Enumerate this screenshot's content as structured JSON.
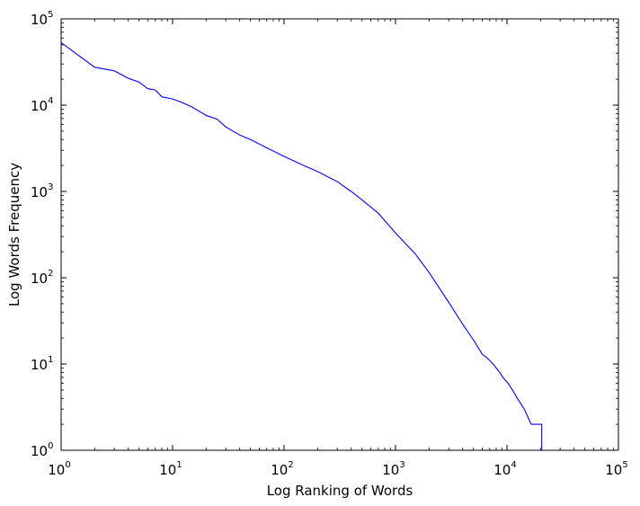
{
  "chart_data": {
    "type": "line",
    "title": "",
    "xlabel": "Log Ranking of Words",
    "ylabel": "Log Words Frequency",
    "xscale": "log",
    "yscale": "log",
    "xlim": [
      1,
      100000
    ],
    "ylim": [
      1,
      100000
    ],
    "grid": false,
    "legend": "none",
    "x_ticks": [
      {
        "value": 1,
        "base": "10",
        "exp": "0"
      },
      {
        "value": 10,
        "base": "10",
        "exp": "1"
      },
      {
        "value": 100,
        "base": "10",
        "exp": "2"
      },
      {
        "value": 1000,
        "base": "10",
        "exp": "3"
      },
      {
        "value": 10000,
        "base": "10",
        "exp": "4"
      },
      {
        "value": 100000,
        "base": "10",
        "exp": "5"
      }
    ],
    "y_ticks": [
      {
        "value": 1,
        "base": "10",
        "exp": "0"
      },
      {
        "value": 10,
        "base": "10",
        "exp": "1"
      },
      {
        "value": 100,
        "base": "10",
        "exp": "2"
      },
      {
        "value": 1000,
        "base": "10",
        "exp": "3"
      },
      {
        "value": 10000,
        "base": "10",
        "exp": "4"
      },
      {
        "value": 100000,
        "base": "10",
        "exp": "5"
      }
    ],
    "series": [
      {
        "color": "#0000ff",
        "points": [
          [
            1,
            53000
          ],
          [
            2,
            27500
          ],
          [
            3,
            25000
          ],
          [
            4,
            20500
          ],
          [
            5,
            18500
          ],
          [
            6,
            15500
          ],
          [
            7,
            15000
          ],
          [
            8,
            12500
          ],
          [
            10,
            11800
          ],
          [
            12,
            10800
          ],
          [
            15,
            9500
          ],
          [
            20,
            7600
          ],
          [
            25,
            6900
          ],
          [
            30,
            5600
          ],
          [
            40,
            4500
          ],
          [
            50,
            4000
          ],
          [
            70,
            3200
          ],
          [
            100,
            2550
          ],
          [
            150,
            2000
          ],
          [
            200,
            1700
          ],
          [
            300,
            1300
          ],
          [
            400,
            1000
          ],
          [
            500,
            800
          ],
          [
            700,
            560
          ],
          [
            1000,
            330
          ],
          [
            1500,
            190
          ],
          [
            2000,
            115
          ],
          [
            3000,
            52
          ],
          [
            4000,
            29
          ],
          [
            5000,
            19
          ],
          [
            6000,
            13
          ],
          [
            6500,
            12
          ],
          [
            7000,
            11
          ],
          [
            7500,
            10
          ],
          [
            8000,
            9
          ],
          [
            8600,
            8
          ],
          [
            9200,
            7
          ],
          [
            10200,
            6
          ],
          [
            11200,
            5
          ],
          [
            12400,
            4
          ],
          [
            14300,
            3
          ],
          [
            16500,
            2
          ],
          [
            20500,
            2
          ],
          [
            20500,
            1
          ],
          [
            30000,
            1
          ]
        ]
      }
    ]
  }
}
